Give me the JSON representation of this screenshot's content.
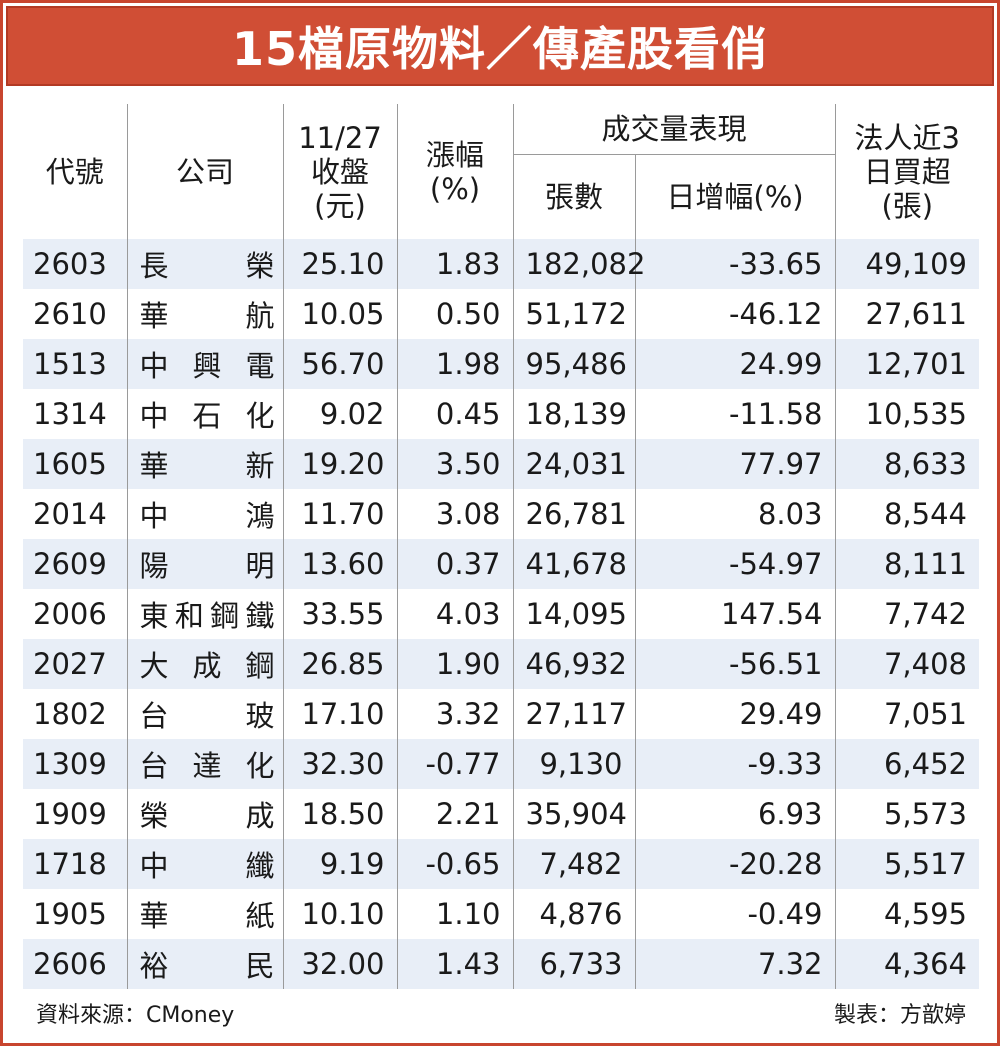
{
  "title": "15檔原物料／傳產股看俏",
  "headers": {
    "code": "代號",
    "company": "公司",
    "close_date": "11/27",
    "close": "收盤",
    "close_unit": "(元)",
    "change": "漲幅",
    "change_unit": "(%)",
    "volume_group": "成交量表現",
    "volume_lots": "張數",
    "volume_change": "日增幅(%)",
    "inst_line1": "法人近3",
    "inst_line2": "日買超",
    "inst_unit": "(張)"
  },
  "rows": [
    {
      "code": "2603",
      "name": [
        "長",
        "榮"
      ],
      "close": "25.10",
      "change": "1.83",
      "lots": "182,082",
      "daily": "-33.65",
      "inst": "49,109"
    },
    {
      "code": "2610",
      "name": [
        "華",
        "航"
      ],
      "close": "10.05",
      "change": "0.50",
      "lots": "51,172",
      "daily": "-46.12",
      "inst": "27,611"
    },
    {
      "code": "1513",
      "name": [
        "中",
        "興",
        "電"
      ],
      "close": "56.70",
      "change": "1.98",
      "lots": "95,486",
      "daily": "24.99",
      "inst": "12,701"
    },
    {
      "code": "1314",
      "name": [
        "中",
        "石",
        "化"
      ],
      "close": "9.02",
      "change": "0.45",
      "lots": "18,139",
      "daily": "-11.58",
      "inst": "10,535"
    },
    {
      "code": "1605",
      "name": [
        "華",
        "新"
      ],
      "close": "19.20",
      "change": "3.50",
      "lots": "24,031",
      "daily": "77.97",
      "inst": "8,633"
    },
    {
      "code": "2014",
      "name": [
        "中",
        "鴻"
      ],
      "close": "11.70",
      "change": "3.08",
      "lots": "26,781",
      "daily": "8.03",
      "inst": "8,544"
    },
    {
      "code": "2609",
      "name": [
        "陽",
        "明"
      ],
      "close": "13.60",
      "change": "0.37",
      "lots": "41,678",
      "daily": "-54.97",
      "inst": "8,111"
    },
    {
      "code": "2006",
      "name": [
        "東",
        "和",
        "鋼",
        "鐵"
      ],
      "close": "33.55",
      "change": "4.03",
      "lots": "14,095",
      "daily": "147.54",
      "inst": "7,742"
    },
    {
      "code": "2027",
      "name": [
        "大",
        "成",
        "鋼"
      ],
      "close": "26.85",
      "change": "1.90",
      "lots": "46,932",
      "daily": "-56.51",
      "inst": "7,408"
    },
    {
      "code": "1802",
      "name": [
        "台",
        "玻"
      ],
      "close": "17.10",
      "change": "3.32",
      "lots": "27,117",
      "daily": "29.49",
      "inst": "7,051"
    },
    {
      "code": "1309",
      "name": [
        "台",
        "達",
        "化"
      ],
      "close": "32.30",
      "change": "-0.77",
      "lots": "9,130",
      "daily": "-9.33",
      "inst": "6,452"
    },
    {
      "code": "1909",
      "name": [
        "榮",
        "成"
      ],
      "close": "18.50",
      "change": "2.21",
      "lots": "35,904",
      "daily": "6.93",
      "inst": "5,573"
    },
    {
      "code": "1718",
      "name": [
        "中",
        "纖"
      ],
      "close": "9.19",
      "change": "-0.65",
      "lots": "7,482",
      "daily": "-20.28",
      "inst": "5,517"
    },
    {
      "code": "1905",
      "name": [
        "華",
        "紙"
      ],
      "close": "10.10",
      "change": "1.10",
      "lots": "4,876",
      "daily": "-0.49",
      "inst": "4,595"
    },
    {
      "code": "2606",
      "name": [
        "裕",
        "民"
      ],
      "close": "32.00",
      "change": "1.43",
      "lots": "6,733",
      "daily": "7.32",
      "inst": "4,364"
    }
  ],
  "footer": {
    "source": "資料來源：CMoney",
    "credit": "製表：方歆婷"
  }
}
